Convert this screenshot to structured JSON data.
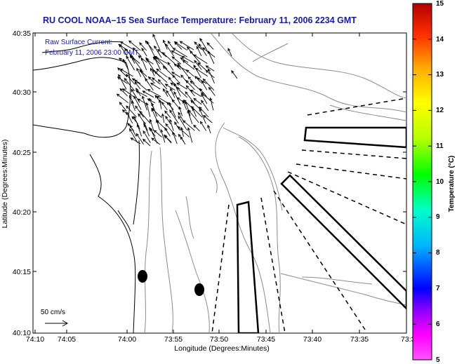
{
  "title": "RU COOL  NOAA–15  Sea Surface Temperature:  February 11, 2006 2234 GMT",
  "annotation": {
    "line1": "Raw Surface Current:",
    "line2": "February 11, 2006 23:00 GMT"
  },
  "scale_label": "50 cm/s",
  "axes": {
    "xlabel": "Longitude (Degrees:Minutes)",
    "ylabel": "Latitude (Degrees:Minutes)",
    "xticks": [
      "74:10",
      "74:05",
      "74:00",
      "73:55",
      "73:50",
      "73:45",
      "73:40",
      "73:35",
      "73:3"
    ],
    "yticks": [
      "40:35",
      "40:30",
      "40:25",
      "40:20",
      "40:15",
      "40:10"
    ]
  },
  "colorbar": {
    "label": "Temperature (°C)",
    "ticks": [
      "15",
      "14",
      "13",
      "12",
      "11",
      "10",
      "9",
      "8",
      "7",
      "6",
      "5"
    ],
    "min": 5,
    "max": 15,
    "colors": [
      "#ff00ff",
      "#8b00ff",
      "#0000ff",
      "#00b4ff",
      "#00ffc8",
      "#00ff00",
      "#b4ff00",
      "#ffff00",
      "#ffaa00",
      "#ff3000",
      "#c00000"
    ]
  }
}
